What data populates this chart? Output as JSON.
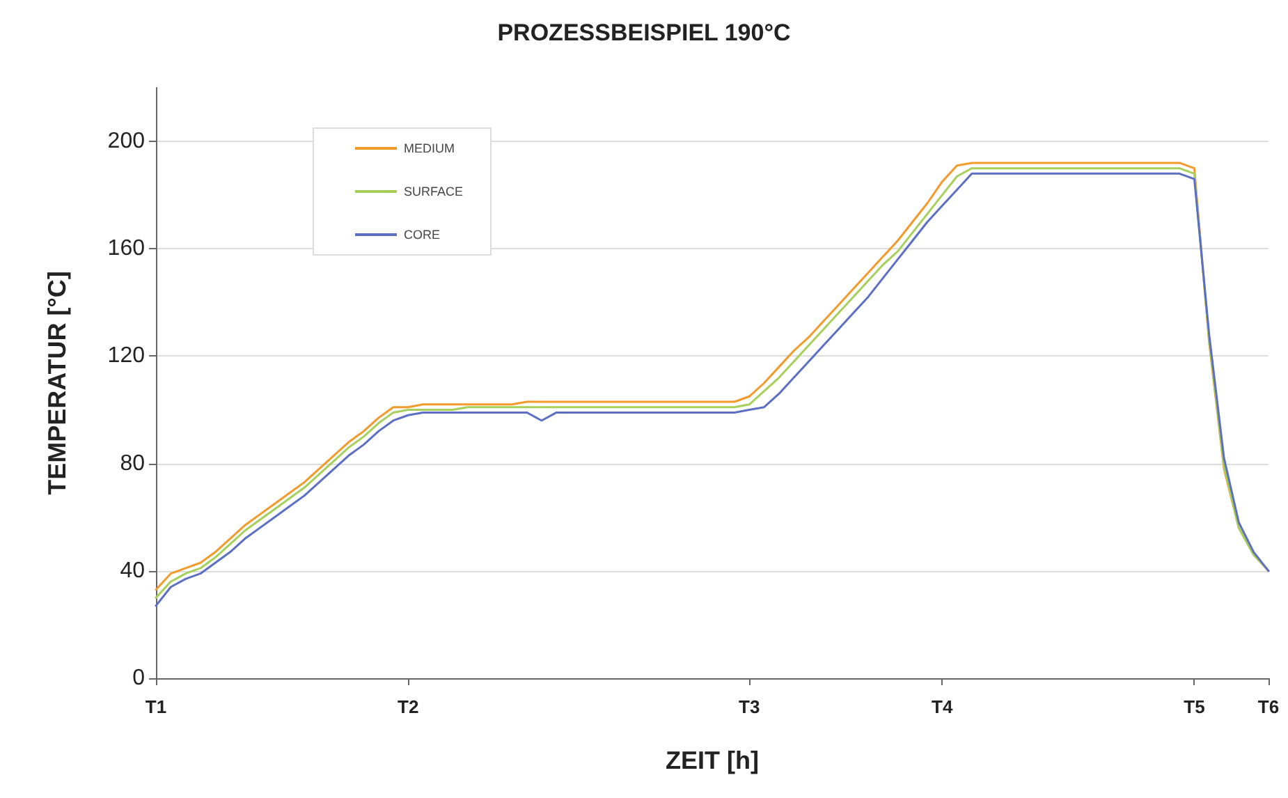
{
  "chart_data": {
    "type": "line",
    "title": "PROZESSBEISPIEL 190°C",
    "xlabel": "ZEIT [h]",
    "ylabel": "TEMPERATUR [°C]",
    "categories": [
      "T1",
      null,
      null,
      null,
      null,
      null,
      null,
      null,
      null,
      null,
      null,
      null,
      null,
      null,
      null,
      null,
      null,
      "T2",
      null,
      null,
      null,
      null,
      null,
      null,
      null,
      null,
      null,
      null,
      null,
      null,
      null,
      null,
      null,
      null,
      null,
      null,
      null,
      null,
      null,
      null,
      "T3",
      null,
      null,
      null,
      null,
      null,
      null,
      null,
      null,
      null,
      null,
      null,
      null,
      "T4",
      null,
      null,
      null,
      null,
      null,
      null,
      null,
      null,
      null,
      null,
      null,
      null,
      null,
      null,
      null,
      null,
      "T5",
      null,
      null,
      null,
      null,
      "T6"
    ],
    "ylim": [
      0,
      220
    ],
    "yticks": [
      0,
      40,
      80,
      120,
      160,
      200
    ],
    "grid": "y",
    "legend": "top left",
    "marker": "none",
    "line_style": "solid",
    "series": [
      {
        "name": "MEDIUM",
        "color": "#f39a2b",
        "values": [
          33,
          39,
          41,
          43,
          47,
          52,
          57,
          61,
          65,
          69,
          73,
          78,
          83,
          88,
          92,
          97,
          101,
          101,
          102,
          102,
          102,
          102,
          102,
          102,
          102,
          103,
          103,
          103,
          103,
          103,
          103,
          103,
          103,
          103,
          103,
          103,
          103,
          103,
          103,
          103,
          105,
          110,
          116,
          122,
          127,
          133,
          139,
          145,
          151,
          157,
          163,
          170,
          177,
          185,
          191,
          192,
          192,
          192,
          192,
          192,
          192,
          192,
          192,
          192,
          192,
          192,
          192,
          192,
          192,
          192,
          190,
          125,
          78,
          56,
          46,
          40
        ]
      },
      {
        "name": "SURFACE",
        "color": "#a6d05a",
        "values": [
          30,
          36,
          39,
          41,
          45,
          50,
          55,
          59,
          63,
          67,
          71,
          76,
          81,
          86,
          90,
          95,
          99,
          100,
          100,
          100,
          100,
          101,
          101,
          101,
          101,
          101,
          101,
          101,
          101,
          101,
          101,
          101,
          101,
          101,
          101,
          101,
          101,
          101,
          101,
          101,
          102,
          107,
          112,
          118,
          124,
          130,
          136,
          142,
          148,
          154,
          159,
          166,
          173,
          180,
          187,
          190,
          190,
          190,
          190,
          190,
          190,
          190,
          190,
          190,
          190,
          190,
          190,
          190,
          190,
          190,
          188,
          126,
          79,
          56,
          46,
          40
        ]
      },
      {
        "name": "CORE",
        "color": "#5b6fc4",
        "values": [
          27,
          34,
          37,
          39,
          43,
          47,
          52,
          56,
          60,
          64,
          68,
          73,
          78,
          83,
          87,
          92,
          96,
          98,
          99,
          99,
          99,
          99,
          99,
          99,
          99,
          99,
          96,
          99,
          99,
          99,
          99,
          99,
          99,
          99,
          99,
          99,
          99,
          99,
          99,
          99,
          100,
          101,
          106,
          112,
          118,
          124,
          130,
          136,
          142,
          149,
          156,
          163,
          170,
          176,
          182,
          188,
          188,
          188,
          188,
          188,
          188,
          188,
          188,
          188,
          188,
          188,
          188,
          188,
          188,
          188,
          186,
          128,
          82,
          58,
          47,
          40
        ]
      }
    ]
  }
}
